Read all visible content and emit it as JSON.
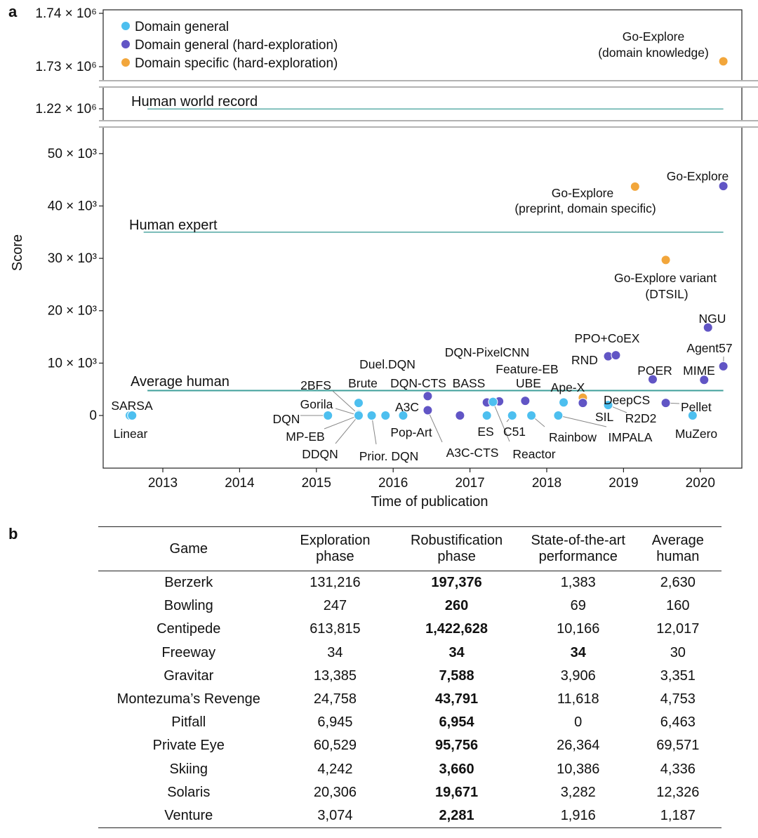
{
  "panel_labels": {
    "a": "a",
    "b": "b"
  },
  "chart_data": {
    "type": "scatter",
    "xlabel": "Time of publication",
    "ylabel": "Score",
    "x_ticks": [
      "2013",
      "2014",
      "2015",
      "2016",
      "2017",
      "2018",
      "2019",
      "2020"
    ],
    "y_ticks_main": [
      {
        "value": 0,
        "label": "0"
      },
      {
        "value": 10000,
        "label": "10 × 10³"
      },
      {
        "value": 20000,
        "label": "20 × 10³"
      },
      {
        "value": 30000,
        "label": "30 × 10³"
      },
      {
        "value": 40000,
        "label": "40 × 10³"
      },
      {
        "value": 50000,
        "label": "50 × 10³"
      }
    ],
    "y_ticks_upper": [
      {
        "value": 1220000,
        "label": "1.22 × 10⁶"
      },
      {
        "value": 1730000,
        "label": "1.73 × 10⁶"
      },
      {
        "value": 1740000,
        "label": "1.74 × 10⁶"
      }
    ],
    "legend_position": "top-left",
    "legend": [
      {
        "label": "Domain general",
        "color": "#4dbfef"
      },
      {
        "label": "Domain general (hard-exploration)",
        "color": "#6155c5"
      },
      {
        "label": "Domain specific (hard-exploration)",
        "color": "#f2a63b"
      }
    ],
    "reference_lines": [
      {
        "label": "Human world record",
        "value": 1219000,
        "x_start": 2012.8,
        "x_end": 2020.3
      },
      {
        "label": "Human expert",
        "value": 35000,
        "x_start": 2012.75,
        "x_end": 2020.3
      },
      {
        "label": "Average human",
        "value": 4753,
        "x_start": 2012.8,
        "x_end": 2020.3
      }
    ],
    "points": [
      {
        "label": "SARSA",
        "x": 2012.57,
        "y": 0,
        "cat": 0
      },
      {
        "label": "Linear",
        "x": 2012.6,
        "y": 0,
        "cat": 0
      },
      {
        "label": "DQN",
        "x": 2015.15,
        "y": 0,
        "cat": 0
      },
      {
        "label": "Gorila",
        "x": 2015.55,
        "y": 0,
        "cat": 0
      },
      {
        "label": "2BFS",
        "x": 2015.55,
        "y": 200,
        "cat": 0
      },
      {
        "label": "Brute",
        "x": 2015.55,
        "y": 2400,
        "cat": 0
      },
      {
        "label": "MP-EB",
        "x": 2015.55,
        "y": 0,
        "cat": 0
      },
      {
        "label": "DDQN",
        "x": 2015.55,
        "y": 0,
        "cat": 0
      },
      {
        "label": "Prior. DQN",
        "x": 2015.72,
        "y": 0,
        "cat": 0
      },
      {
        "label": "Duel.DQN",
        "x": 2015.9,
        "y": 0,
        "cat": 0
      },
      {
        "label": "A3C",
        "x": 2016.13,
        "y": 0,
        "cat": 0
      },
      {
        "label": "Pop-Art",
        "x": 2016.13,
        "y": 0,
        "cat": 0
      },
      {
        "label": "DQN-CTS",
        "x": 2016.45,
        "y": 3700,
        "cat": 1
      },
      {
        "label": "A3C-CTS",
        "x": 2016.45,
        "y": 1000,
        "cat": 1
      },
      {
        "label": "BASS",
        "x": 2016.87,
        "y": 0,
        "cat": 1
      },
      {
        "label": "DQN-PixelCNN",
        "x": 2017.22,
        "y": 2500,
        "cat": 1
      },
      {
        "label": "ES",
        "x": 2017.22,
        "y": 0,
        "cat": 0
      },
      {
        "label": "Feature-EB",
        "x": 2017.38,
        "y": 2700,
        "cat": 1
      },
      {
        "label": "C51",
        "x": 2017.55,
        "y": 0,
        "cat": 0
      },
      {
        "label": "Reactor",
        "x": 2017.3,
        "y": 2600,
        "cat": 0
      },
      {
        "label": "UBE",
        "x": 2017.72,
        "y": 2800,
        "cat": 1
      },
      {
        "label": "Rainbow",
        "x": 2017.8,
        "y": 0,
        "cat": 0
      },
      {
        "label": "Ape-X",
        "x": 2018.22,
        "y": 2500,
        "cat": 0
      },
      {
        "label": "IMPALA",
        "x": 2018.15,
        "y": 0,
        "cat": 0
      },
      {
        "label": "DeepCS",
        "x": 2018.47,
        "y": 3400,
        "cat": 2
      },
      {
        "label": "SIL",
        "x": 2018.47,
        "y": 2400,
        "cat": 1
      },
      {
        "label": "RND",
        "x": 2018.8,
        "y": 11300,
        "cat": 1
      },
      {
        "label": "PPO+CoEX",
        "x": 2018.9,
        "y": 11500,
        "cat": 1
      },
      {
        "label": "R2D2",
        "x": 2018.8,
        "y": 2000,
        "cat": 0
      },
      {
        "label": "Go-Explore (preprint, domain specific)",
        "x": 2019.15,
        "y": 43700,
        "cat": 2
      },
      {
        "label": "Go-Explore variant (DTSIL)",
        "x": 2019.55,
        "y": 29700,
        "cat": 2
      },
      {
        "label": "POER",
        "x": 2019.38,
        "y": 6900,
        "cat": 1
      },
      {
        "label": "Pellet",
        "x": 2019.55,
        "y": 2400,
        "cat": 1
      },
      {
        "label": "MuZero",
        "x": 2019.9,
        "y": 0,
        "cat": 0
      },
      {
        "label": "MIME",
        "x": 2020.05,
        "y": 6800,
        "cat": 1
      },
      {
        "label": "NGU",
        "x": 2020.1,
        "y": 16800,
        "cat": 1
      },
      {
        "label": "Agent57",
        "x": 2020.3,
        "y": 9400,
        "cat": 1
      },
      {
        "label": "Go-Explore",
        "x": 2020.3,
        "y": 43800,
        "cat": 1
      },
      {
        "label": "Go-Explore (domain knowledge)",
        "x": 2020.3,
        "y": 1731000,
        "cat": 2
      }
    ]
  },
  "table": {
    "headers": [
      [
        "Game"
      ],
      [
        "Exploration",
        "phase"
      ],
      [
        "Robustification",
        "phase"
      ],
      [
        "State-of-the-art",
        "performance"
      ],
      [
        "Average",
        "human"
      ]
    ],
    "rows": [
      {
        "game": "Berzerk",
        "exploration": "131,216",
        "robustification": "197,376",
        "sota": "1,383",
        "human": "2,630",
        "bold": [
          2
        ]
      },
      {
        "game": "Bowling",
        "exploration": "247",
        "robustification": "260",
        "sota": "69",
        "human": "160",
        "bold": [
          2
        ]
      },
      {
        "game": "Centipede",
        "exploration": "613,815",
        "robustification": "1,422,628",
        "sota": "10,166",
        "human": "12,017",
        "bold": [
          2
        ]
      },
      {
        "game": "Freeway",
        "exploration": "34",
        "robustification": "34",
        "sota": "34",
        "human": "30",
        "bold": [
          2,
          3
        ]
      },
      {
        "game": "Gravitar",
        "exploration": "13,385",
        "robustification": "7,588",
        "sota": "3,906",
        "human": "3,351",
        "bold": [
          2
        ]
      },
      {
        "game": "Montezuma’s Revenge",
        "exploration": "24,758",
        "robustification": "43,791",
        "sota": "11,618",
        "human": "4,753",
        "bold": [
          2
        ]
      },
      {
        "game": "Pitfall",
        "exploration": "6,945",
        "robustification": "6,954",
        "sota": "0",
        "human": "6,463",
        "bold": [
          2
        ]
      },
      {
        "game": "Private Eye",
        "exploration": "60,529",
        "robustification": "95,756",
        "sota": "26,364",
        "human": "69,571",
        "bold": [
          2
        ]
      },
      {
        "game": "Skiing",
        "exploration": "4,242",
        "robustification": "3,660",
        "sota": "10,386",
        "human": "4,336",
        "bold": [
          2
        ]
      },
      {
        "game": "Solaris",
        "exploration": "20,306",
        "robustification": "19,671",
        "sota": "3,282",
        "human": "12,326",
        "bold": [
          2
        ]
      },
      {
        "game": "Venture",
        "exploration": "3,074",
        "robustification": "2,281",
        "sota": "1,916",
        "human": "1,187",
        "bold": [
          2
        ]
      }
    ]
  }
}
